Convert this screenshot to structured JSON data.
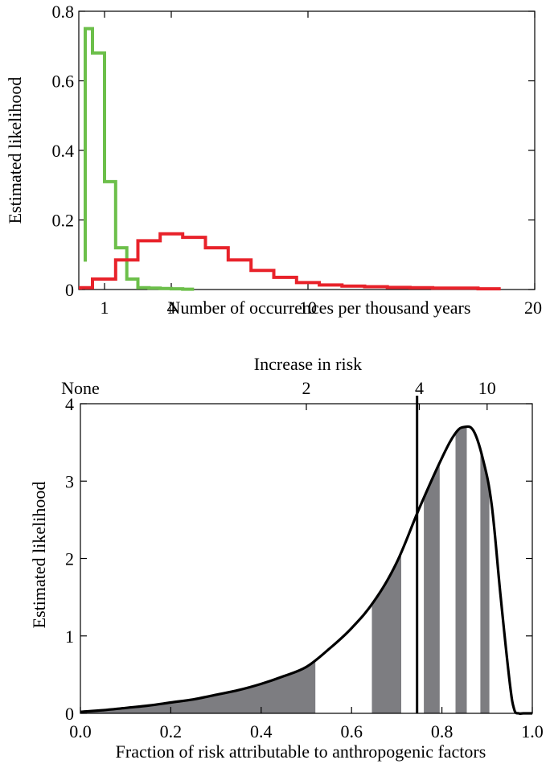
{
  "chart_data": [
    {
      "type": "line",
      "step": true,
      "ylabel": "Estimated likelihood",
      "xlabel": "Number of occurrences per thousand years",
      "xlim": [
        0,
        20
      ],
      "ylim": [
        0,
        0.8
      ],
      "x_ticks": [
        1,
        4,
        10,
        20
      ],
      "y_ticks": [
        0,
        0.2,
        0.4,
        0.6,
        0.8
      ],
      "y_tick_labels": [
        "0",
        "0.2",
        "0.4",
        "0.6",
        "0.8"
      ],
      "grid": false,
      "legend": null,
      "series": [
        {
          "color": "#6cbf4a",
          "edges": [
            0.2,
            0.5,
            1.0,
            1.5,
            2.0,
            2.5,
            3.0,
            3.5,
            4.0,
            4.5,
            5.0
          ],
          "values": [
            0.75,
            0.68,
            0.31,
            0.12,
            0.03,
            0.005,
            0.004,
            0.003,
            0.002,
            0.001
          ],
          "start_y": 0.08
        },
        {
          "color": "#e8222a",
          "edges": [
            0.0,
            0.5,
            1.5,
            2.5,
            3.5,
            4.5,
            5.5,
            6.5,
            7.5,
            8.5,
            9.5,
            10.5,
            11.5,
            12.5,
            13.5,
            14.5,
            15.5,
            16.5,
            17.5,
            18.5
          ],
          "values": [
            0.005,
            0.03,
            0.085,
            0.14,
            0.16,
            0.15,
            0.12,
            0.085,
            0.055,
            0.035,
            0.02,
            0.013,
            0.01,
            0.008,
            0.006,
            0.005,
            0.004,
            0.004,
            0.002
          ]
        }
      ]
    },
    {
      "type": "area",
      "ylabel": "Estimated likelihood",
      "xlabel": "Fraction of risk attributable to anthropogenic factors",
      "top_axis_label": "Increase in risk",
      "top_ticks": [
        {
          "label": "None",
          "frac": 0.0
        },
        {
          "label": "2",
          "frac": 0.5
        },
        {
          "label": "4",
          "frac": 0.75
        },
        {
          "label": "10",
          "frac": 0.9
        }
      ],
      "xlim": [
        0,
        1
      ],
      "ylim": [
        0,
        4
      ],
      "x_ticks": [
        0.0,
        0.2,
        0.4,
        0.6,
        0.8,
        1.0
      ],
      "x_tick_labels": [
        "0.0",
        "0.2",
        "0.4",
        "0.6",
        "0.8",
        "1.0"
      ],
      "y_ticks": [
        0,
        1,
        2,
        3,
        4
      ],
      "y_tick_labels": [
        "0",
        "1",
        "2",
        "3",
        "4"
      ],
      "grid": false,
      "vertical_line_x": 0.745,
      "curve": {
        "x": [
          0.0,
          0.05,
          0.1,
          0.15,
          0.2,
          0.25,
          0.3,
          0.35,
          0.4,
          0.45,
          0.5,
          0.55,
          0.6,
          0.65,
          0.7,
          0.75,
          0.8,
          0.83,
          0.85,
          0.87,
          0.89,
          0.91,
          0.93,
          0.95,
          0.96,
          0.97,
          0.98,
          1.0
        ],
        "y": [
          0.02,
          0.04,
          0.07,
          0.1,
          0.14,
          0.18,
          0.24,
          0.3,
          0.38,
          0.48,
          0.6,
          0.83,
          1.1,
          1.45,
          1.95,
          2.65,
          3.3,
          3.62,
          3.7,
          3.65,
          3.3,
          2.7,
          1.5,
          0.4,
          0.05,
          0.0,
          0.0,
          0.0
        ]
      },
      "shaded_bands": [
        [
          0.0,
          0.52
        ],
        [
          0.645,
          0.71
        ],
        [
          0.76,
          0.795
        ],
        [
          0.83,
          0.855
        ],
        [
          0.885,
          0.905
        ]
      ],
      "line_color": "#000000",
      "fill_color": "#7d7d81"
    }
  ]
}
